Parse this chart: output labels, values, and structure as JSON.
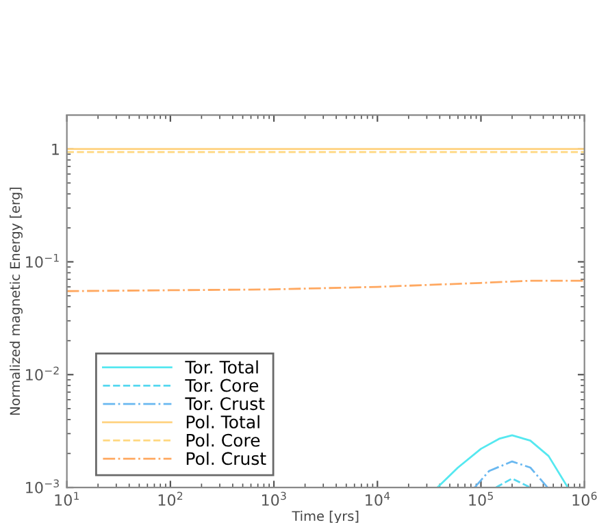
{
  "chart_data": {
    "type": "line",
    "xlabel": "Time [yrs]",
    "ylabel": "Normalized magnetic Energy [erg]",
    "log": "xy",
    "xlim": [
      10,
      1000000
    ],
    "ylim": [
      0.001,
      2
    ],
    "xticks": [
      {
        "value": 10,
        "label": "10$^{1}$"
      },
      {
        "value": 100,
        "label": "10$^{2}$"
      },
      {
        "value": 1000,
        "label": "10$^{3}$"
      },
      {
        "value": 10000,
        "label": "10$^{4}$"
      },
      {
        "value": 100000,
        "label": "10$^{5}$"
      },
      {
        "value": 1000000,
        "label": "10$^{6}$"
      }
    ],
    "yticks": [
      {
        "value": 0.001,
        "label": "10$^{−3}$"
      },
      {
        "value": 0.01,
        "label": "10$^{−2}$"
      },
      {
        "value": 0.1,
        "label": "10$^{−1}$"
      },
      1
    ],
    "legend": "bottom left",
    "grid": false,
    "series": [
      {
        "name": "Tor. Total",
        "color": "#55e8f0",
        "line_style": "solid",
        "x": [
          38000,
          60000,
          100000,
          150000,
          200000,
          300000,
          450000,
          690000
        ],
        "values": [
          0.001,
          0.0015,
          0.0022,
          0.0027,
          0.0029,
          0.0026,
          0.0019,
          0.001
        ]
      },
      {
        "name": "Tor. Core",
        "color": "#55d8f0",
        "line_style": "dashed",
        "x": [
          140000,
          200000,
          300000
        ],
        "values": [
          0.001,
          0.0012,
          0.001
        ]
      },
      {
        "name": "Tor. Crust",
        "color": "#6ab8f0",
        "line_style": "dashdot",
        "x": [
          87000,
          120000,
          200000,
          300000,
          440000
        ],
        "values": [
          0.001,
          0.0014,
          0.0017,
          0.0015,
          0.001
        ]
      },
      {
        "name": "Pol. Total",
        "color": "#ffd27f",
        "line_style": "solid",
        "x": [
          10,
          1000000
        ],
        "values": [
          1.0,
          1.0
        ]
      },
      {
        "name": "Pol. Core",
        "color": "#ffd880",
        "line_style": "dashed",
        "x": [
          10,
          1000000
        ],
        "values": [
          0.94,
          0.94
        ]
      },
      {
        "name": "Pol. Crust",
        "color": "#ffa860",
        "line_style": "dashdot",
        "x": [
          10,
          100,
          1000,
          10000,
          100000,
          300000,
          1000000
        ],
        "values": [
          0.055,
          0.056,
          0.057,
          0.06,
          0.065,
          0.068,
          0.068
        ]
      }
    ]
  }
}
